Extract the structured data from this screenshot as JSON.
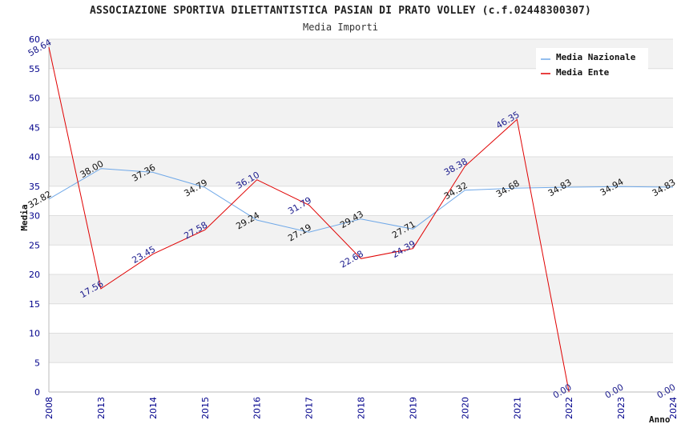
{
  "chart_data": {
    "type": "line",
    "title": "ASSOCIAZIONE SPORTIVA DILETTANTISTICA PASIAN DI PRATO VOLLEY (c.f.02448300307)",
    "subtitle": "Media Importi",
    "xlabel": "Anno",
    "ylabel": "Media",
    "ylim": [
      0,
      60
    ],
    "yticks": [
      "0",
      "5",
      "10",
      "15",
      "20",
      "25",
      "30",
      "35",
      "40",
      "45",
      "50",
      "55",
      "60"
    ],
    "categories": [
      "2008",
      "2013",
      "2014",
      "2015",
      "2016",
      "2017",
      "2018",
      "2019",
      "2020",
      "2021",
      "2022",
      "2023",
      "2024"
    ],
    "series": [
      {
        "name": "Media Nazionale",
        "color": "#6fa8e8",
        "values": [
          32.82,
          38.0,
          37.36,
          34.79,
          29.24,
          27.19,
          29.43,
          27.71,
          34.32,
          34.68,
          34.83,
          34.94,
          34.83
        ],
        "labels": [
          "32.82",
          "38.00",
          "37.36",
          "34.79",
          "29.24",
          "27.19",
          "29.43",
          "27.71",
          "34.32",
          "34.68",
          "34.83",
          "34.94",
          "34.83"
        ]
      },
      {
        "name": "Media Ente",
        "color": "#e00000",
        "values": [
          58.64,
          17.56,
          23.45,
          27.58,
          36.1,
          31.79,
          22.68,
          24.39,
          38.38,
          46.35,
          0.0,
          null,
          null
        ],
        "labels": [
          "58.64",
          "17.56",
          "23.45",
          "27.58",
          "36.10",
          "31.79",
          "22.68",
          "24.39",
          "38.38",
          "46.35",
          "0.00",
          "0.00",
          "0.00"
        ]
      }
    ],
    "legend": "top-right",
    "grid": true
  }
}
